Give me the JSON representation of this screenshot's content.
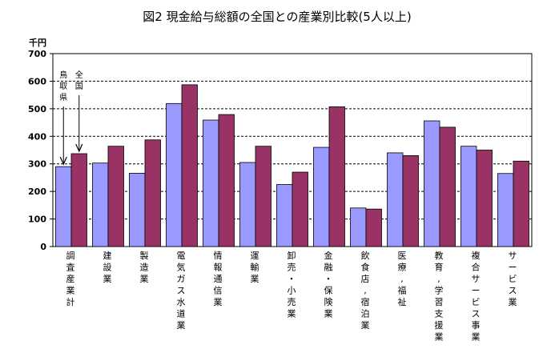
{
  "chart_data": {
    "type": "bar",
    "title": "図2 現金給与総額の全国との産業別比較(5人以上)",
    "unit_label": "千円",
    "ylim": [
      0,
      700
    ],
    "yticks": [
      0,
      100,
      200,
      300,
      400,
      500,
      600,
      700
    ],
    "grid": "dashed-horizontal",
    "categories": [
      "調査産業計",
      "建設業",
      "製造業",
      "電気ガス水道業",
      "情報通信業",
      "運輸業",
      "卸売・小売業",
      "金融・保険業",
      "飲食店,宿泊業",
      "医療,福祉",
      "教育,学習支援業",
      "複合サービス事業",
      "サービス業"
    ],
    "series": [
      {
        "name": "鳥取県",
        "color": "#9999ff",
        "values": [
          290,
          303,
          266,
          519,
          459,
          305,
          225,
          360,
          140,
          340,
          456,
          364,
          265
        ]
      },
      {
        "name": "全国",
        "color": "#993366",
        "values": [
          337,
          364,
          387,
          587,
          479,
          364,
          270,
          507,
          136,
          330,
          433,
          350,
          310
        ]
      }
    ],
    "annotations": [
      {
        "text": "鳥取県",
        "target_series": 0,
        "target_category": 0
      },
      {
        "text": "全国",
        "target_series": 1,
        "target_category": 0
      }
    ]
  }
}
